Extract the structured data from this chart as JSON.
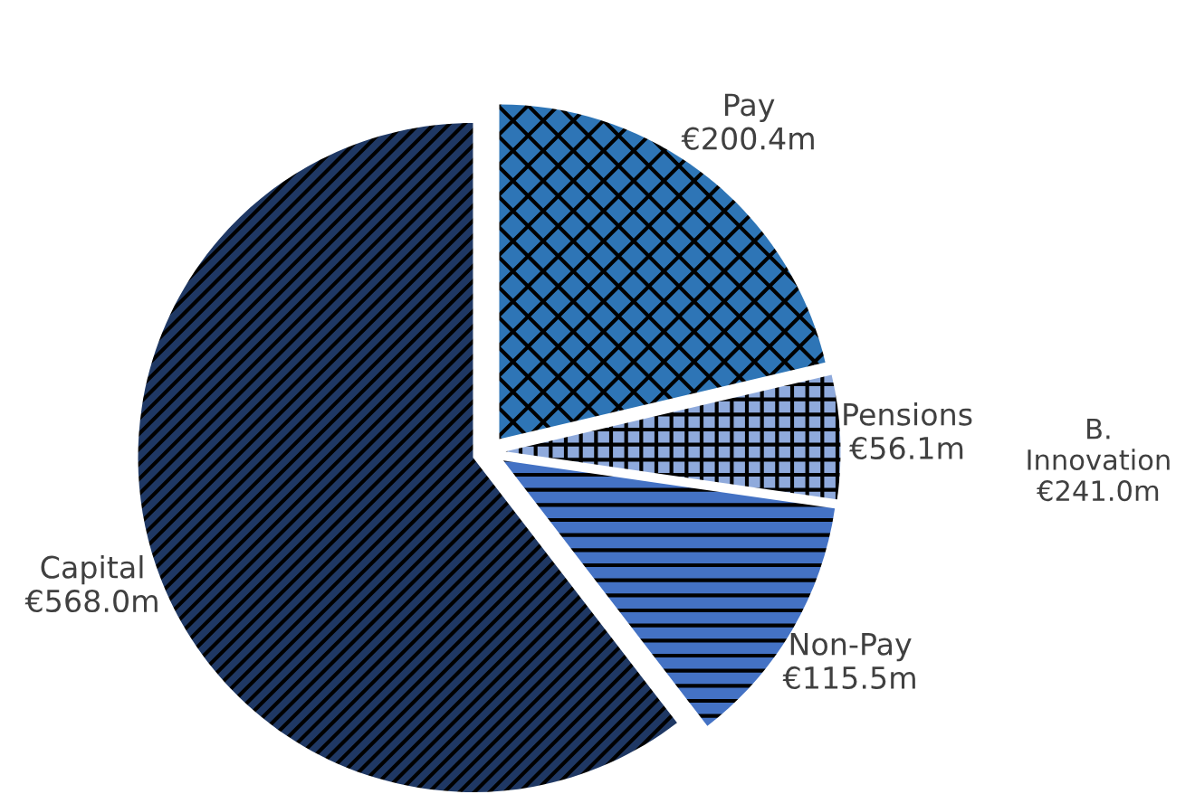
{
  "chart_data": {
    "type": "pie",
    "categories": [
      "Pay",
      "Pensions",
      "Non-Pay",
      "Capital"
    ],
    "values": [
      200.4,
      56.1,
      115.5,
      568.0
    ],
    "value_labels": [
      "€200.4m",
      "€56.1m",
      "€115.5m",
      "€568.0m"
    ],
    "colors": [
      "#2e75b6",
      "#8faadc",
      "#4472c4",
      "#1f3864"
    ],
    "annotations": [
      "B.\nInnovation\n€241.0m"
    ],
    "legend": false
  }
}
